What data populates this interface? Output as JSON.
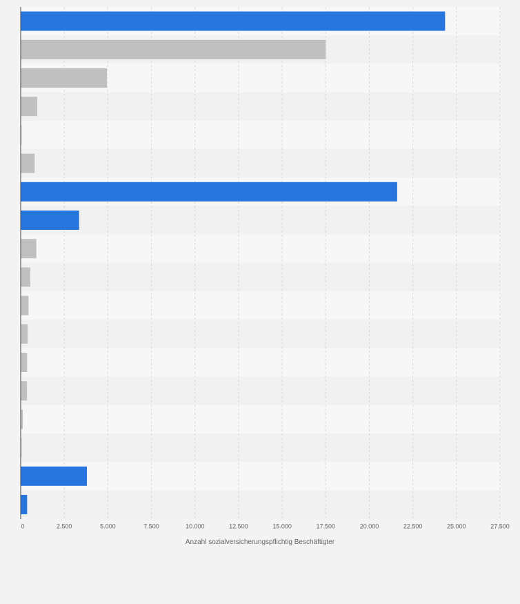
{
  "chart_data": {
    "type": "bar",
    "orientation": "horizontal",
    "xlabel": "Anzahl sozialversicherungspflichtig Beschäftigter",
    "ylabel": "",
    "xlim": [
      0,
      27500
    ],
    "xticks": [
      0,
      2500,
      5000,
      7500,
      10000,
      12500,
      15000,
      17500,
      20000,
      22500,
      25000,
      27500
    ],
    "xtick_labels": [
      "0",
      "2.500",
      "5.000",
      "7.500",
      "10.000",
      "12.500",
      "15.000",
      "17.500",
      "20.000",
      "22.500",
      "25.000",
      "27.500"
    ],
    "grid": true,
    "values": [
      24350,
      17500,
      4950,
      950,
      50,
      800,
      21600,
      3350,
      900,
      550,
      450,
      400,
      370,
      360,
      120,
      50,
      3800,
      370
    ],
    "bar_colors": [
      "#2876dd",
      "#c0c0c0",
      "#c0c0c0",
      "#c0c0c0",
      "#c0c0c0",
      "#c0c0c0",
      "#2876dd",
      "#2876dd",
      "#c0c0c0",
      "#c0c0c0",
      "#c0c0c0",
      "#c0c0c0",
      "#c0c0c0",
      "#c0c0c0",
      "#c0c0c0",
      "#c0c0c0",
      "#2876dd",
      "#2876dd"
    ],
    "colors": {
      "highlight": "#2876dd",
      "neutral": "#c0c0c0",
      "band_light": "#f7f7f7",
      "band_dark": "#f1f1f1",
      "background": "#f3f3f3",
      "grid": "#d8d8d8",
      "axis": "#444444",
      "text": "#666666"
    }
  }
}
